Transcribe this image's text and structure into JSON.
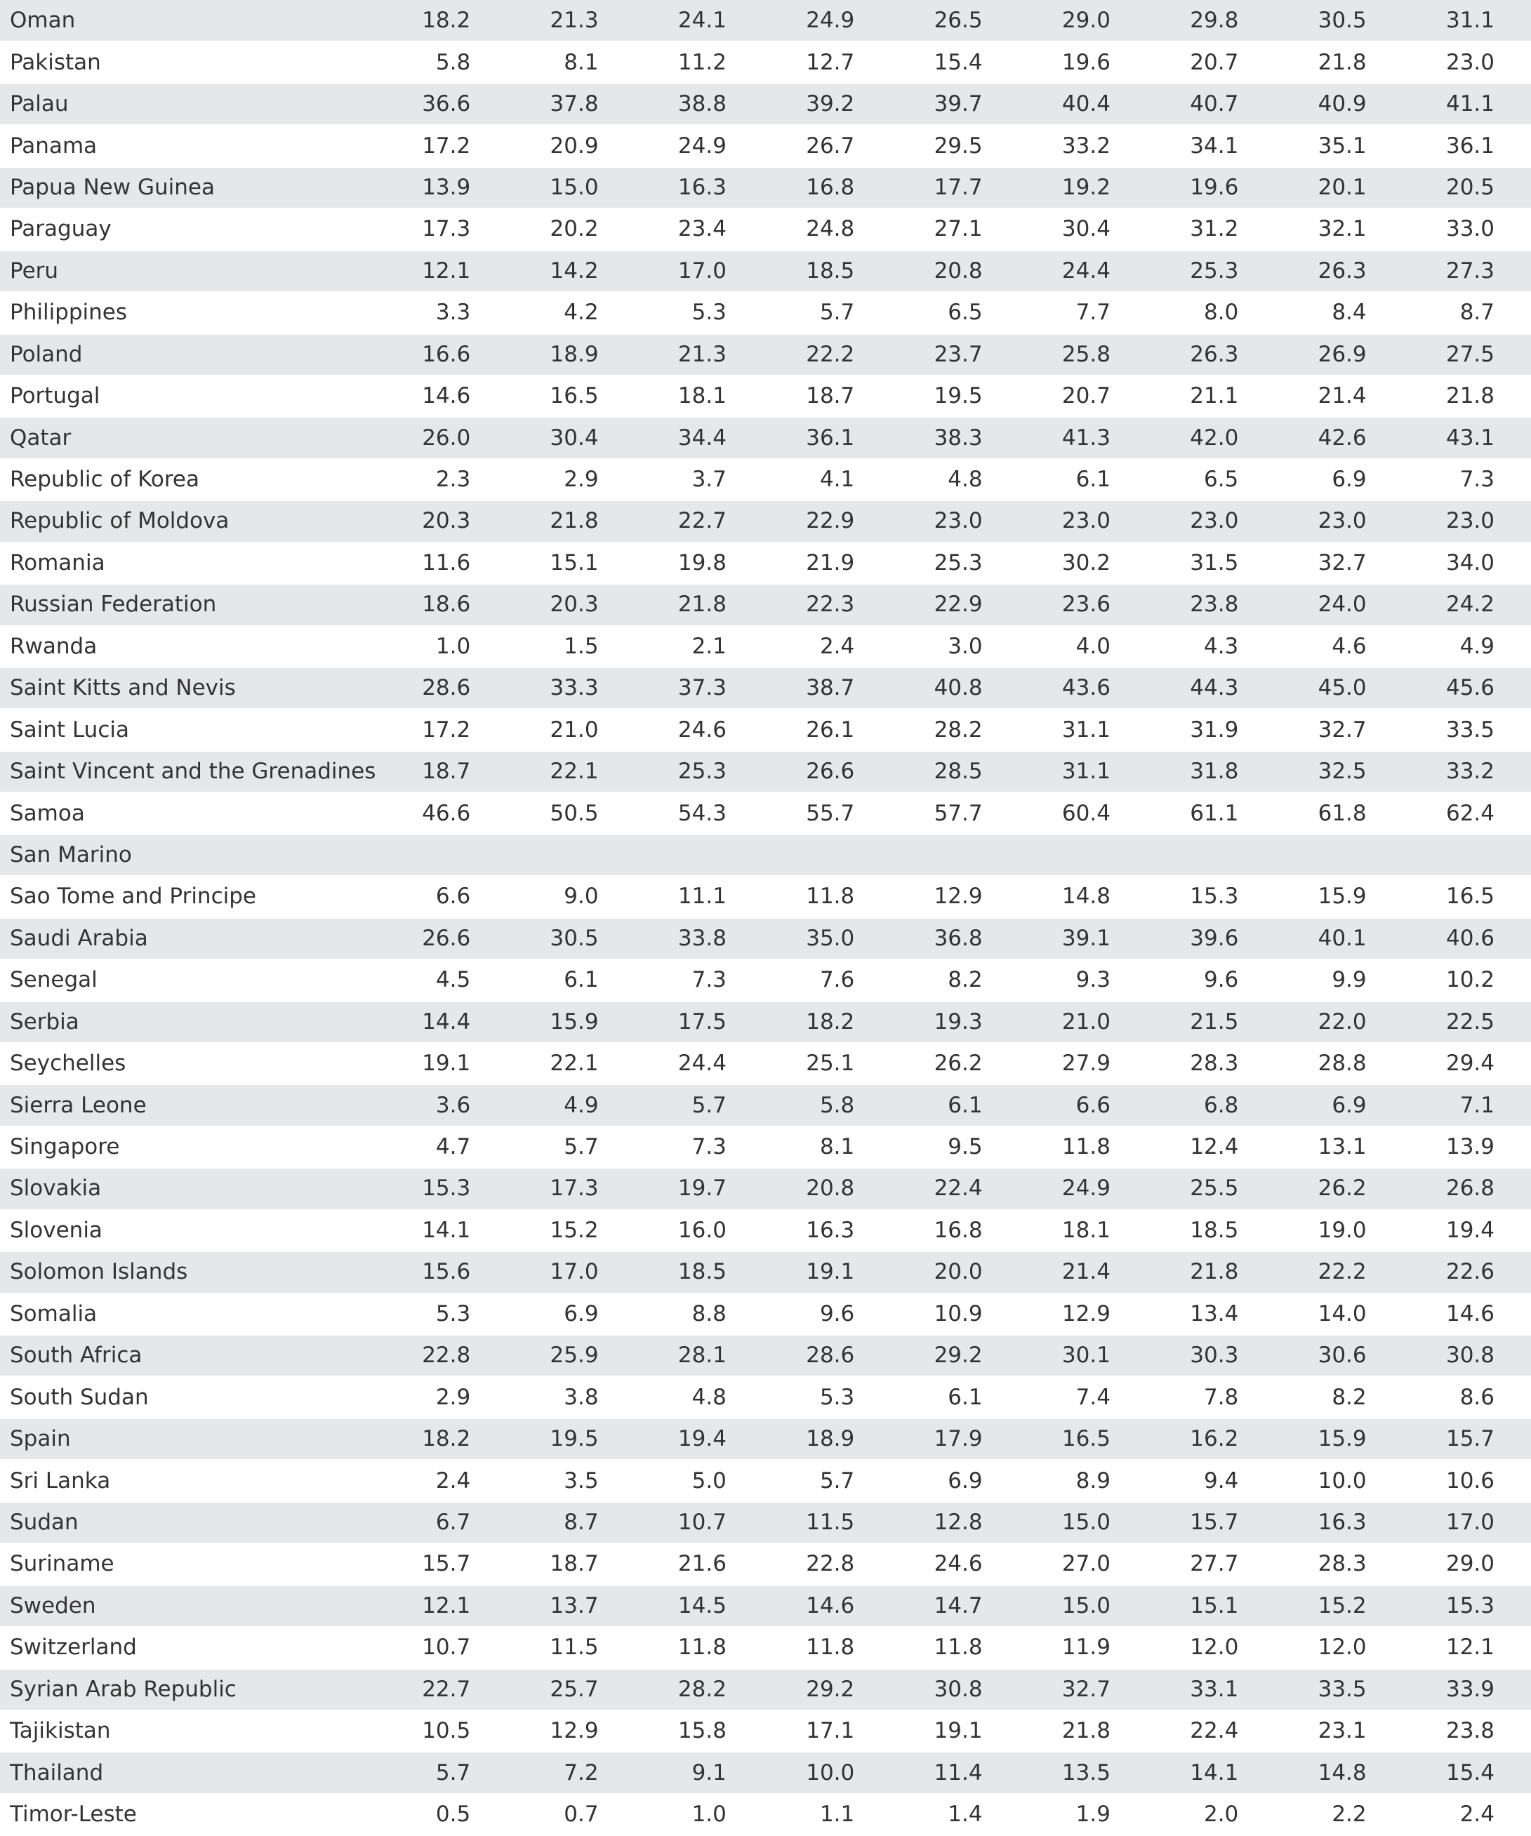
{
  "colors": {
    "shaded_row": "#e6e7e9",
    "plain_row": "#ffffff",
    "text": "#333333"
  },
  "rows": [
    {
      "name": "Oman",
      "values": [
        "18.2",
        "21.3",
        "24.1",
        "24.9",
        "26.5",
        "29.0",
        "29.8",
        "30.5",
        "31.1"
      ]
    },
    {
      "name": "Pakistan",
      "values": [
        "5.8",
        "8.1",
        "11.2",
        "12.7",
        "15.4",
        "19.6",
        "20.7",
        "21.8",
        "23.0"
      ]
    },
    {
      "name": "Palau",
      "values": [
        "36.6",
        "37.8",
        "38.8",
        "39.2",
        "39.7",
        "40.4",
        "40.7",
        "40.9",
        "41.1"
      ]
    },
    {
      "name": "Panama",
      "values": [
        "17.2",
        "20.9",
        "24.9",
        "26.7",
        "29.5",
        "33.2",
        "34.1",
        "35.1",
        "36.1"
      ]
    },
    {
      "name": "Papua New Guinea",
      "values": [
        "13.9",
        "15.0",
        "16.3",
        "16.8",
        "17.7",
        "19.2",
        "19.6",
        "20.1",
        "20.5"
      ]
    },
    {
      "name": "Paraguay",
      "values": [
        "17.3",
        "20.2",
        "23.4",
        "24.8",
        "27.1",
        "30.4",
        "31.2",
        "32.1",
        "33.0"
      ]
    },
    {
      "name": "Peru",
      "values": [
        "12.1",
        "14.2",
        "17.0",
        "18.5",
        "20.8",
        "24.4",
        "25.3",
        "26.3",
        "27.3"
      ]
    },
    {
      "name": "Philippines",
      "values": [
        "3.3",
        "4.2",
        "5.3",
        "5.7",
        "6.5",
        "7.7",
        "8.0",
        "8.4",
        "8.7"
      ]
    },
    {
      "name": "Poland",
      "values": [
        "16.6",
        "18.9",
        "21.3",
        "22.2",
        "23.7",
        "25.8",
        "26.3",
        "26.9",
        "27.5"
      ]
    },
    {
      "name": "Portugal",
      "values": [
        "14.6",
        "16.5",
        "18.1",
        "18.7",
        "19.5",
        "20.7",
        "21.1",
        "21.4",
        "21.8"
      ]
    },
    {
      "name": "Qatar",
      "values": [
        "26.0",
        "30.4",
        "34.4",
        "36.1",
        "38.3",
        "41.3",
        "42.0",
        "42.6",
        "43.1"
      ]
    },
    {
      "name": "Republic of Korea",
      "values": [
        "2.3",
        "2.9",
        "3.7",
        "4.1",
        "4.8",
        "6.1",
        "6.5",
        "6.9",
        "7.3"
      ]
    },
    {
      "name": "Republic of Moldova",
      "values": [
        "20.3",
        "21.8",
        "22.7",
        "22.9",
        "23.0",
        "23.0",
        "23.0",
        "23.0",
        "23.0"
      ]
    },
    {
      "name": "Romania",
      "values": [
        "11.6",
        "15.1",
        "19.8",
        "21.9",
        "25.3",
        "30.2",
        "31.5",
        "32.7",
        "34.0"
      ]
    },
    {
      "name": "Russian Federation",
      "values": [
        "18.6",
        "20.3",
        "21.8",
        "22.3",
        "22.9",
        "23.6",
        "23.8",
        "24.0",
        "24.2"
      ]
    },
    {
      "name": "Rwanda",
      "values": [
        "1.0",
        "1.5",
        "2.1",
        "2.4",
        "3.0",
        "4.0",
        "4.3",
        "4.6",
        "4.9"
      ]
    },
    {
      "name": "Saint Kitts and Nevis",
      "values": [
        "28.6",
        "33.3",
        "37.3",
        "38.7",
        "40.8",
        "43.6",
        "44.3",
        "45.0",
        "45.6"
      ]
    },
    {
      "name": "Saint Lucia",
      "values": [
        "17.2",
        "21.0",
        "24.6",
        "26.1",
        "28.2",
        "31.1",
        "31.9",
        "32.7",
        "33.5"
      ]
    },
    {
      "name": "Saint Vincent and the Grenadines",
      "values": [
        "18.7",
        "22.1",
        "25.3",
        "26.6",
        "28.5",
        "31.1",
        "31.8",
        "32.5",
        "33.2"
      ]
    },
    {
      "name": "Samoa",
      "values": [
        "46.6",
        "50.5",
        "54.3",
        "55.7",
        "57.7",
        "60.4",
        "61.1",
        "61.8",
        "62.4"
      ]
    },
    {
      "name": "San Marino",
      "values": [
        "",
        "",
        "",
        "",
        "",
        "",
        "",
        "",
        ""
      ]
    },
    {
      "name": "Sao Tome and Principe",
      "values": [
        "6.6",
        "9.0",
        "11.1",
        "11.8",
        "12.9",
        "14.8",
        "15.3",
        "15.9",
        "16.5"
      ]
    },
    {
      "name": "Saudi Arabia",
      "values": [
        "26.6",
        "30.5",
        "33.8",
        "35.0",
        "36.8",
        "39.1",
        "39.6",
        "40.1",
        "40.6"
      ]
    },
    {
      "name": "Senegal",
      "values": [
        "4.5",
        "6.1",
        "7.3",
        "7.6",
        "8.2",
        "9.3",
        "9.6",
        "9.9",
        "10.2"
      ]
    },
    {
      "name": "Serbia",
      "values": [
        "14.4",
        "15.9",
        "17.5",
        "18.2",
        "19.3",
        "21.0",
        "21.5",
        "22.0",
        "22.5"
      ]
    },
    {
      "name": "Seychelles",
      "values": [
        "19.1",
        "22.1",
        "24.4",
        "25.1",
        "26.2",
        "27.9",
        "28.3",
        "28.8",
        "29.4"
      ]
    },
    {
      "name": "Sierra Leone",
      "values": [
        "3.6",
        "4.9",
        "5.7",
        "5.8",
        "6.1",
        "6.6",
        "6.8",
        "6.9",
        "7.1"
      ]
    },
    {
      "name": "Singapore",
      "values": [
        "4.7",
        "5.7",
        "7.3",
        "8.1",
        "9.5",
        "11.8",
        "12.4",
        "13.1",
        "13.9"
      ]
    },
    {
      "name": "Slovakia",
      "values": [
        "15.3",
        "17.3",
        "19.7",
        "20.8",
        "22.4",
        "24.9",
        "25.5",
        "26.2",
        "26.8"
      ]
    },
    {
      "name": "Slovenia",
      "values": [
        "14.1",
        "15.2",
        "16.0",
        "16.3",
        "16.8",
        "18.1",
        "18.5",
        "19.0",
        "19.4"
      ]
    },
    {
      "name": "Solomon Islands",
      "values": [
        "15.6",
        "17.0",
        "18.5",
        "19.1",
        "20.0",
        "21.4",
        "21.8",
        "22.2",
        "22.6"
      ]
    },
    {
      "name": "Somalia",
      "values": [
        "5.3",
        "6.9",
        "8.8",
        "9.6",
        "10.9",
        "12.9",
        "13.4",
        "14.0",
        "14.6"
      ]
    },
    {
      "name": "South Africa",
      "values": [
        "22.8",
        "25.9",
        "28.1",
        "28.6",
        "29.2",
        "30.1",
        "30.3",
        "30.6",
        "30.8"
      ]
    },
    {
      "name": "South Sudan",
      "values": [
        "2.9",
        "3.8",
        "4.8",
        "5.3",
        "6.1",
        "7.4",
        "7.8",
        "8.2",
        "8.6"
      ]
    },
    {
      "name": "Spain",
      "values": [
        "18.2",
        "19.5",
        "19.4",
        "18.9",
        "17.9",
        "16.5",
        "16.2",
        "15.9",
        "15.7"
      ]
    },
    {
      "name": "Sri Lanka",
      "values": [
        "2.4",
        "3.5",
        "5.0",
        "5.7",
        "6.9",
        "8.9",
        "9.4",
        "10.0",
        "10.6"
      ]
    },
    {
      "name": "Sudan",
      "values": [
        "6.7",
        "8.7",
        "10.7",
        "11.5",
        "12.8",
        "15.0",
        "15.7",
        "16.3",
        "17.0"
      ]
    },
    {
      "name": "Suriname",
      "values": [
        "15.7",
        "18.7",
        "21.6",
        "22.8",
        "24.6",
        "27.0",
        "27.7",
        "28.3",
        "29.0"
      ]
    },
    {
      "name": "Sweden",
      "values": [
        "12.1",
        "13.7",
        "14.5",
        "14.6",
        "14.7",
        "15.0",
        "15.1",
        "15.2",
        "15.3"
      ]
    },
    {
      "name": "Switzerland",
      "values": [
        "10.7",
        "11.5",
        "11.8",
        "11.8",
        "11.8",
        "11.9",
        "12.0",
        "12.0",
        "12.1"
      ]
    },
    {
      "name": "Syrian Arab Republic",
      "values": [
        "22.7",
        "25.7",
        "28.2",
        "29.2",
        "30.8",
        "32.7",
        "33.1",
        "33.5",
        "33.9"
      ]
    },
    {
      "name": "Tajikistan",
      "values": [
        "10.5",
        "12.9",
        "15.8",
        "17.1",
        "19.1",
        "21.8",
        "22.4",
        "23.1",
        "23.8"
      ]
    },
    {
      "name": "Thailand",
      "values": [
        "5.7",
        "7.2",
        "9.1",
        "10.0",
        "11.4",
        "13.5",
        "14.1",
        "14.8",
        "15.4"
      ]
    },
    {
      "name": "Timor-Leste",
      "values": [
        "0.5",
        "0.7",
        "1.0",
        "1.1",
        "1.4",
        "1.9",
        "2.0",
        "2.2",
        "2.4"
      ]
    }
  ]
}
